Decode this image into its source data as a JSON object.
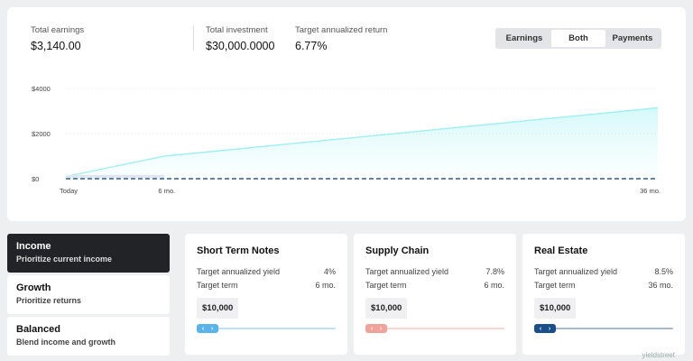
{
  "summary": {
    "total_earnings": {
      "label": "Total earnings",
      "value": "$3,140.00"
    },
    "total_investment": {
      "label": "Total investment",
      "value": "$30,000.0000"
    },
    "target_return": {
      "label": "Target annualized return",
      "value": "6.77%"
    }
  },
  "view_toggle": {
    "options": [
      "Earnings",
      "Both",
      "Payments"
    ],
    "selected": "Both"
  },
  "colors": {
    "earnings_line": "#9ff0f2",
    "earnings_fill": "#dffbfb",
    "payments_line": "#2a5b8c",
    "active_dark": "#222327"
  },
  "chart_data": {
    "type": "area",
    "y_tick_labels": [
      "$4000",
      "$2000",
      "$0"
    ],
    "y_ticks": [
      4000,
      2000,
      0
    ],
    "x_tick_labels": [
      "Today",
      "6 mo.",
      "36 mo."
    ],
    "ylim": [
      0,
      4000
    ],
    "series": [
      {
        "x": [
          0,
          6,
          36
        ],
        "values": [
          100,
          1000,
          3140
        ]
      },
      {
        "x": [
          0,
          36
        ],
        "values": [
          0,
          0
        ]
      }
    ],
    "grid": true
  },
  "strategies": [
    {
      "title": "Income",
      "subtitle": "Prioritize current income",
      "active": true
    },
    {
      "title": "Growth",
      "subtitle": "Prioritize returns",
      "active": false
    },
    {
      "title": "Balanced",
      "subtitle": "Blend income and growth",
      "active": false
    }
  ],
  "investments": [
    {
      "name": "Short Term Notes",
      "yield_label": "Target annualized yield",
      "yield": "4%",
      "term_label": "Target term",
      "term": "6 mo.",
      "amount": "$10,000",
      "slider_color": "#5ab4ea",
      "track_color": "#bfe2f5",
      "slider_position": 0.0
    },
    {
      "name": "Supply Chain",
      "yield_label": "Target annualized yield",
      "yield": "7.8%",
      "term_label": "Target term",
      "term": "6 mo.",
      "amount": "$10,000",
      "slider_color": "#f1a39b",
      "track_color": "#f9d6d2",
      "slider_position": 0.0
    },
    {
      "name": "Real Estate",
      "yield_label": "Target annualized yield",
      "yield": "8.5%",
      "term_label": "Target term",
      "term": "36 mo.",
      "amount": "$10,000",
      "slider_color": "#1b4f8a",
      "track_color": "#a9b9cc",
      "slider_position": 0.0
    }
  ],
  "watermark": "yieldstreet"
}
